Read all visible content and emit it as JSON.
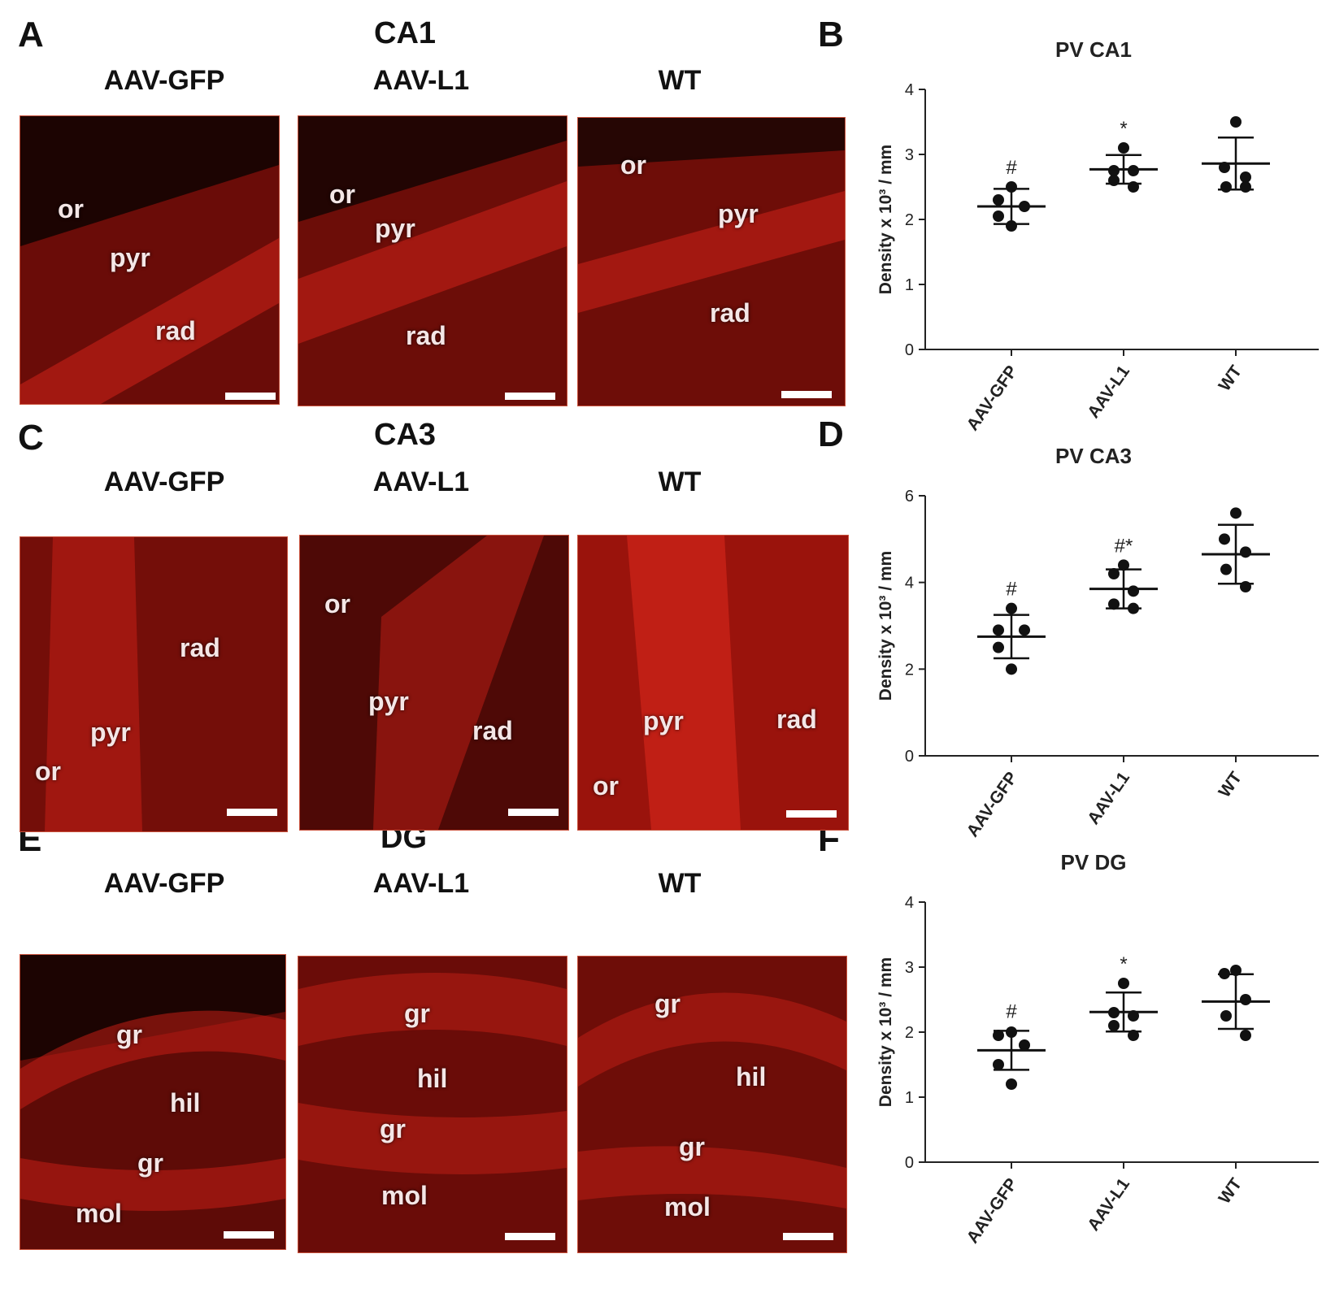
{
  "panels": {
    "A": {
      "letter": "A",
      "region": "CA1",
      "images": [
        {
          "group": "AAV-GFP",
          "labels": [
            "or",
            "pyr",
            "rad"
          ]
        },
        {
          "group": "AAV-L1",
          "labels": [
            "or",
            "pyr",
            "rad"
          ]
        },
        {
          "group": "WT",
          "labels": [
            "or",
            "pyr",
            "rad"
          ]
        }
      ]
    },
    "C": {
      "letter": "C",
      "region": "CA3",
      "images": [
        {
          "group": "AAV-GFP",
          "labels": [
            "rad",
            "pyr",
            "or"
          ]
        },
        {
          "group": "AAV-L1",
          "labels": [
            "or",
            "pyr",
            "rad"
          ]
        },
        {
          "group": "WT",
          "labels": [
            "pyr",
            "rad",
            "or"
          ]
        }
      ]
    },
    "E": {
      "letter": "E",
      "region": "DG",
      "images": [
        {
          "group": "AAV-GFP",
          "labels": [
            "gr",
            "hil",
            "gr",
            "mol"
          ]
        },
        {
          "group": "AAV-L1",
          "labels": [
            "gr",
            "hil",
            "gr",
            "mol"
          ]
        },
        {
          "group": "WT",
          "labels": [
            "gr",
            "hil",
            "gr",
            "mol"
          ]
        }
      ]
    },
    "B": {
      "letter": "B"
    },
    "D": {
      "letter": "D"
    },
    "F": {
      "letter": "F"
    }
  },
  "chart_data": [
    {
      "id": "B",
      "type": "scatter",
      "title": "PV CA1",
      "ylabel": "Density x 10³ / mm",
      "categories": [
        "AAV-GFP",
        "AAV-L1",
        "WT"
      ],
      "ylim": [
        0,
        4
      ],
      "yticks": [
        0,
        1,
        2,
        3,
        4
      ],
      "points": [
        [
          2.5,
          2.3,
          2.2,
          2.05,
          1.9
        ],
        [
          3.1,
          2.75,
          2.75,
          2.6,
          2.5
        ],
        [
          3.5,
          2.8,
          2.65,
          2.5,
          2.5
        ]
      ],
      "mean": [
        2.2,
        2.77,
        2.86
      ],
      "sd": [
        0.27,
        0.22,
        0.4
      ],
      "annotations": [
        "#",
        "*",
        ""
      ]
    },
    {
      "id": "D",
      "type": "scatter",
      "title": "PV CA3",
      "ylabel": "Density x 10³ / mm",
      "categories": [
        "AAV-GFP",
        "AAV-L1",
        "WT"
      ],
      "ylim": [
        0,
        6
      ],
      "yticks": [
        0,
        2,
        4,
        6
      ],
      "points": [
        [
          3.4,
          2.9,
          2.9,
          2.5,
          2.0
        ],
        [
          4.4,
          4.2,
          3.8,
          3.5,
          3.4
        ],
        [
          5.6,
          5.0,
          4.7,
          4.3,
          3.9
        ]
      ],
      "mean": [
        2.75,
        3.85,
        4.65
      ],
      "sd": [
        0.5,
        0.45,
        0.68
      ],
      "annotations": [
        "#",
        "#*",
        ""
      ]
    },
    {
      "id": "F",
      "type": "scatter",
      "title": "PV DG",
      "ylabel": "Density x 10³ / mm",
      "categories": [
        "AAV-GFP",
        "AAV-L1",
        "WT"
      ],
      "ylim": [
        0,
        4
      ],
      "yticks": [
        0,
        1,
        2,
        3,
        4
      ],
      "points": [
        [
          2.0,
          1.95,
          1.8,
          1.5,
          1.2
        ],
        [
          2.75,
          2.3,
          2.25,
          2.1,
          1.95
        ],
        [
          2.95,
          2.9,
          2.5,
          2.25,
          1.95
        ]
      ],
      "mean": [
        1.72,
        2.31,
        2.47
      ],
      "sd": [
        0.3,
        0.3,
        0.42
      ],
      "annotations": [
        "#",
        "*",
        ""
      ]
    }
  ]
}
